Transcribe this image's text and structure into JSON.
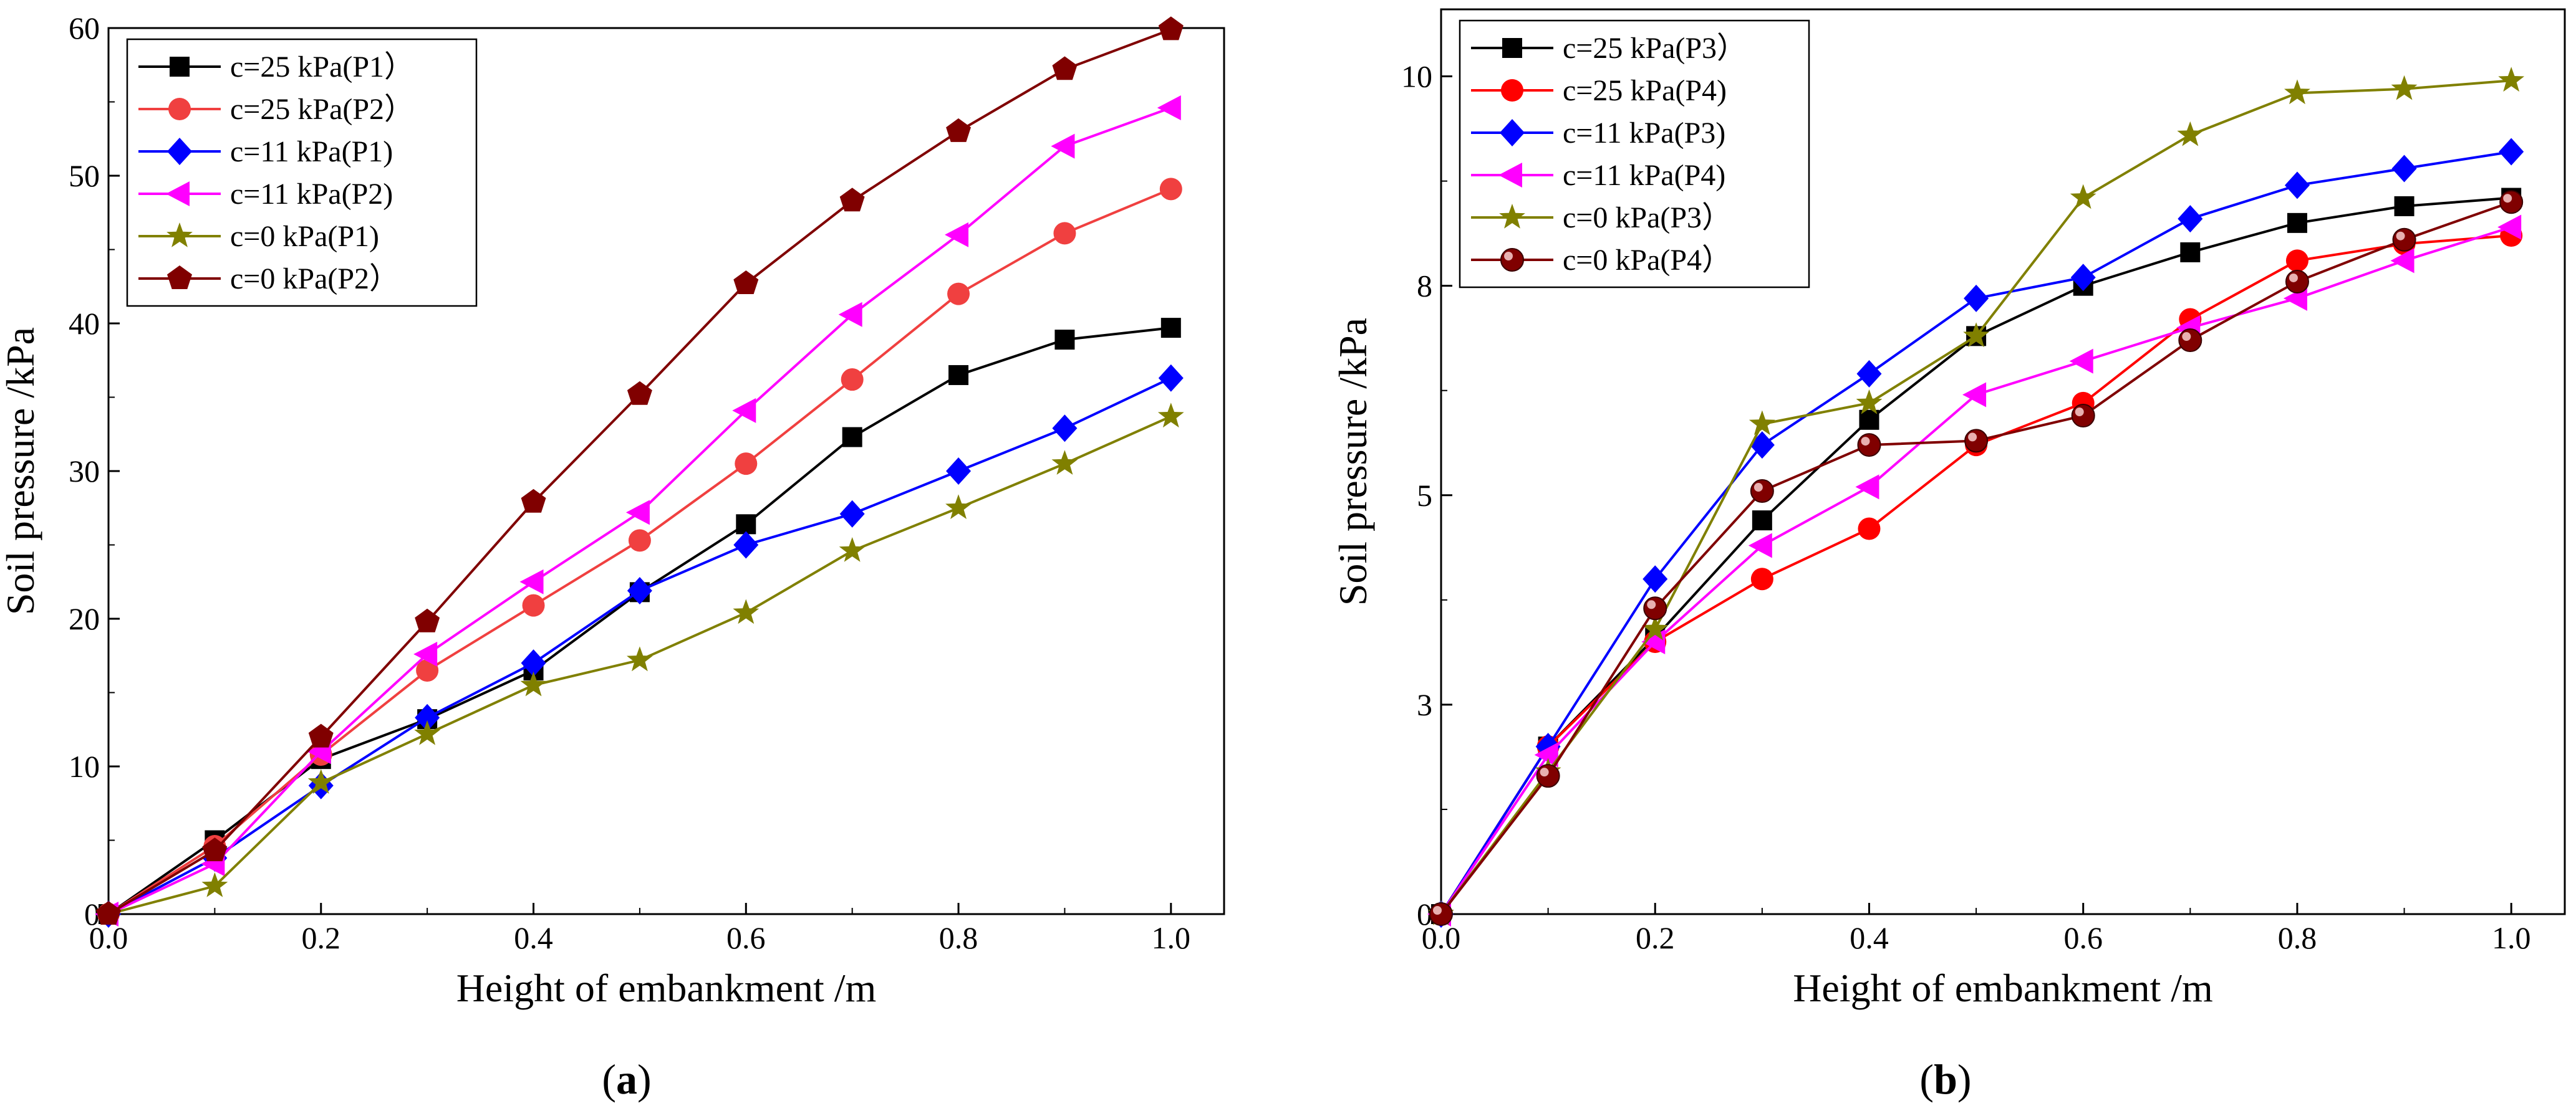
{
  "chart_data": [
    {
      "type": "line",
      "panel_label": "a",
      "xlabel": "Height of embankment /m",
      "ylabel": "Soil pressure /kPa",
      "xlim": [
        0,
        1.05
      ],
      "ylim": [
        0,
        60
      ],
      "xticks": [
        "0.0",
        "0.2",
        "0.4",
        "0.6",
        "0.8",
        "1.0"
      ],
      "yticks": [
        "0",
        "10",
        "20",
        "30",
        "40",
        "50",
        "60"
      ],
      "grid": false,
      "legend_position": "top-left",
      "x": [
        0,
        0.1,
        0.2,
        0.3,
        0.4,
        0.5,
        0.6,
        0.7,
        0.8,
        0.9,
        1.0
      ],
      "series": [
        {
          "name": "c=25 kPa(P1）",
          "color": "#000000",
          "marker": "square",
          "values": [
            0,
            5.0,
            10.5,
            13.2,
            16.5,
            21.8,
            26.4,
            32.3,
            36.5,
            38.9,
            39.7
          ]
        },
        {
          "name": "c=25 kPa(P2）",
          "color": "#f04040",
          "marker": "circle",
          "values": [
            0,
            4.6,
            10.8,
            16.5,
            20.9,
            25.3,
            30.5,
            36.2,
            42.0,
            46.1,
            49.1
          ]
        },
        {
          "name": "c=11 kPa(P1)",
          "color": "#0000ff",
          "marker": "diamond",
          "values": [
            0,
            3.8,
            8.7,
            13.3,
            17.0,
            21.9,
            25.0,
            27.1,
            30.0,
            32.9,
            36.3
          ]
        },
        {
          "name": "c=11 kPa(P2)",
          "color": "#ff00ff",
          "marker": "triangle-left",
          "values": [
            0,
            3.4,
            11.0,
            17.6,
            22.5,
            27.2,
            34.1,
            40.6,
            46.0,
            52.0,
            54.6
          ]
        },
        {
          "name": "c=0 kPa(P1)",
          "color": "#808000",
          "marker": "star",
          "values": [
            0,
            1.9,
            8.9,
            12.2,
            15.5,
            17.2,
            20.4,
            24.6,
            27.5,
            30.5,
            33.7
          ]
        },
        {
          "name": "c=0 kPa(P2）",
          "color": "#800000",
          "marker": "pentagon",
          "values": [
            0,
            4.3,
            12.0,
            19.8,
            27.9,
            35.2,
            42.7,
            48.3,
            53.0,
            57.2,
            59.9
          ]
        }
      ]
    },
    {
      "type": "line",
      "panel_label": "b",
      "xlabel": "Height of embankment /m",
      "ylabel": "Soil pressure /kPa",
      "xlim": [
        0,
        1.05
      ],
      "ylim": [
        0,
        10.8
      ],
      "xticks": [
        "0.0",
        "0.2",
        "0.4",
        "0.6",
        "0.8",
        "1.0"
      ],
      "yticks": [
        "0",
        "3",
        "5",
        "8",
        "10"
      ],
      "ytick_values": [
        0,
        2.5,
        5,
        7.5,
        10
      ],
      "grid": false,
      "legend_position": "top-left",
      "x": [
        0,
        0.1,
        0.2,
        0.3,
        0.4,
        0.5,
        0.6,
        0.7,
        0.8,
        0.9,
        1.0
      ],
      "series": [
        {
          "name": "c=25 kPa(P3）",
          "color": "#000000",
          "marker": "square",
          "values": [
            0,
            2.0,
            3.3,
            4.7,
            5.9,
            6.9,
            7.5,
            7.9,
            8.25,
            8.45,
            8.55
          ]
        },
        {
          "name": "c=25 kPa(P4)",
          "color": "#ff0000",
          "marker": "circle",
          "values": [
            0,
            2.0,
            3.25,
            4.0,
            4.6,
            5.6,
            6.1,
            7.1,
            7.8,
            8.0,
            8.1
          ]
        },
        {
          "name": "c=11 kPa(P3)",
          "color": "#0000ff",
          "marker": "diamond",
          "values": [
            0,
            2.0,
            4.0,
            5.6,
            6.45,
            7.35,
            7.6,
            8.3,
            8.7,
            8.9,
            9.1
          ]
        },
        {
          "name": "c=11 kPa(P4)",
          "color": "#ff00ff",
          "marker": "triangle-left",
          "values": [
            0,
            1.9,
            3.25,
            4.4,
            5.1,
            6.2,
            6.6,
            7.0,
            7.35,
            7.8,
            8.2
          ]
        },
        {
          "name": "c=0 kPa(P3）",
          "color": "#808000",
          "marker": "star",
          "values": [
            0,
            1.7,
            3.4,
            5.85,
            6.1,
            6.9,
            8.55,
            9.3,
            9.8,
            9.85,
            9.95
          ]
        },
        {
          "name": "c=0 kPa(P4）",
          "color": "#800000",
          "marker": "sphere",
          "values": [
            0,
            1.65,
            3.65,
            5.05,
            5.6,
            5.65,
            5.95,
            6.85,
            7.55,
            8.05,
            8.5
          ]
        }
      ]
    }
  ]
}
